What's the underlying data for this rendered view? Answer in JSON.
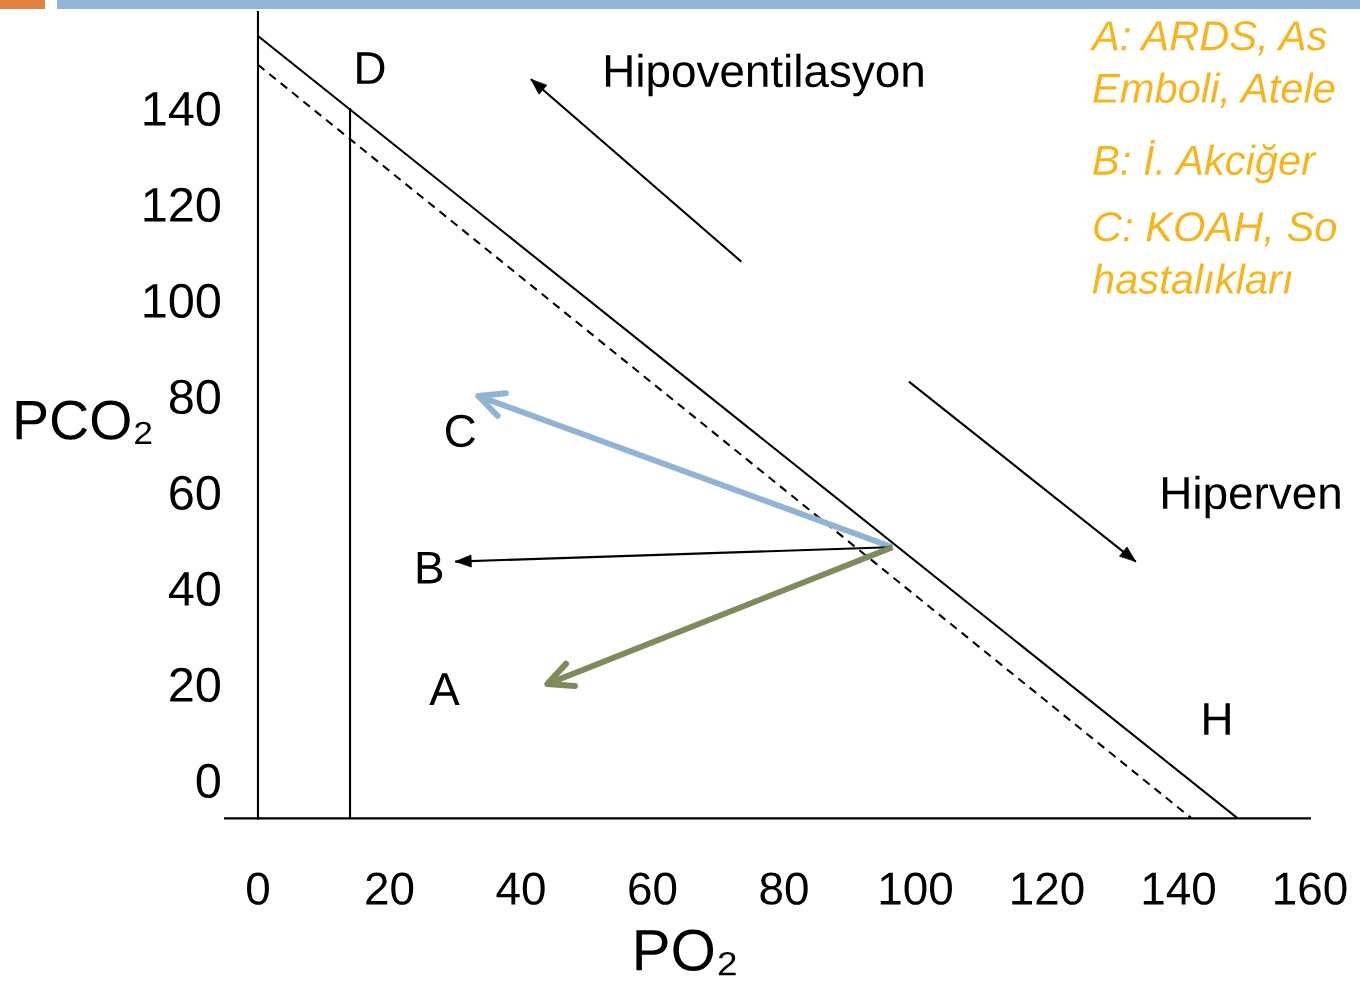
{
  "chart_data": {
    "type": "line",
    "xlabel": "PO₂",
    "ylabel": "PCO₂",
    "xlim": [
      -5,
      160
    ],
    "ylim": [
      -8,
      160
    ],
    "xticks": [
      0,
      20,
      40,
      60,
      80,
      100,
      120,
      140,
      160
    ],
    "yticks": [
      0,
      20,
      40,
      60,
      80,
      100,
      120,
      140
    ],
    "series": [
      {
        "x": [
          0,
          149
        ],
        "values": [
          155,
          -8
        ],
        "color": "#000000",
        "line_style": "solid"
      },
      {
        "x": [
          0,
          142
        ],
        "values": [
          149,
          -8
        ],
        "color": "#000000",
        "line_style": "dashed"
      },
      {
        "x": [
          14,
          14
        ],
        "values": [
          140,
          -8
        ],
        "color": "#000000",
        "line_style": "solid"
      },
      {
        "x": [
          73.5,
          41.5
        ],
        "values": [
          108,
          146
        ],
        "color": "#000000",
        "line_style": "solid"
      },
      {
        "x": [
          99,
          133.5
        ],
        "values": [
          83,
          45.5
        ],
        "color": "#000000",
        "line_style": "solid"
      },
      {
        "x": [
          96.5,
          33.5
        ],
        "values": [
          48.5,
          80
        ],
        "color": "#92b4d4",
        "line_style": "solid"
      },
      {
        "x": [
          96,
          30
        ],
        "values": [
          48.5,
          45.5
        ],
        "color": "#000000",
        "line_style": "solid"
      },
      {
        "x": [
          96.5,
          44
        ],
        "values": [
          48.5,
          20
        ],
        "color": "#7e8b5b",
        "line_style": "solid"
      }
    ],
    "annotations": [
      "D",
      "Hipoventilasyon",
      "Hiperven",
      {
        "text": "C",
        "x": 33.5,
        "y": 80
      },
      {
        "text": "B",
        "x": 30,
        "y": 45.5
      },
      {
        "text": "A",
        "x": 44,
        "y": 20
      },
      "H",
      "A: ARDS, As\nEmboli, Atele",
      "B: İ. Akciğer",
      "C: KOAH, So\nhastalıkları"
    ]
  }
}
